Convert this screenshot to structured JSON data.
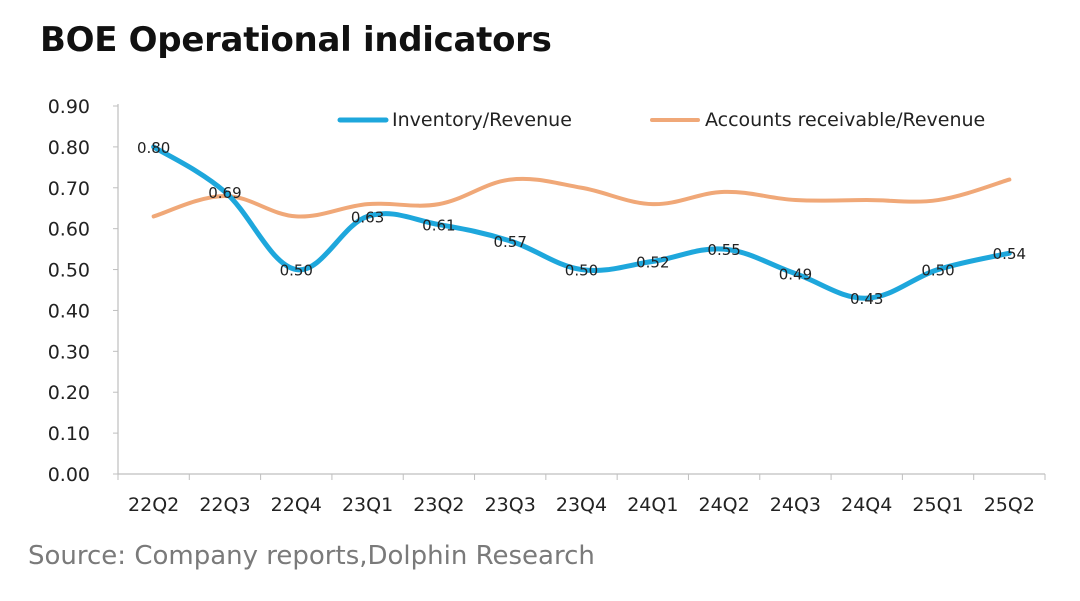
{
  "chart_data": {
    "type": "line",
    "title": "BOE Operational indicators",
    "xlabel": "",
    "ylabel": "",
    "categories": [
      "22Q2",
      "22Q3",
      "22Q4",
      "23Q1",
      "23Q2",
      "23Q3",
      "23Q4",
      "24Q1",
      "24Q2",
      "24Q3",
      "24Q4",
      "25Q1",
      "25Q2"
    ],
    "ylim": [
      0,
      0.9
    ],
    "yticks": [
      "0.00",
      "0.10",
      "0.20",
      "0.30",
      "0.40",
      "0.50",
      "0.60",
      "0.70",
      "0.80",
      "0.90"
    ],
    "grid": false,
    "legend_position": "top",
    "series": [
      {
        "name": "Inventory/Revenue",
        "color": "#1ea7dc",
        "values": [
          0.8,
          0.69,
          0.5,
          0.63,
          0.61,
          0.57,
          0.5,
          0.52,
          0.55,
          0.49,
          0.43,
          0.5,
          0.54
        ],
        "data_labels": [
          "0.80",
          "0.69",
          "0.50",
          "0.63",
          "0.61",
          "0.57",
          "0.50",
          "0.52",
          "0.55",
          "0.49",
          "0.43",
          "0.50",
          "0.54"
        ]
      },
      {
        "name": "Accounts receivable/Revenue",
        "color": "#f0a878",
        "values": [
          0.63,
          0.68,
          0.63,
          0.66,
          0.66,
          0.72,
          0.7,
          0.66,
          0.69,
          0.67,
          0.67,
          0.67,
          0.72
        ]
      }
    ]
  },
  "source": "Source: Company reports,Dolphin Research"
}
